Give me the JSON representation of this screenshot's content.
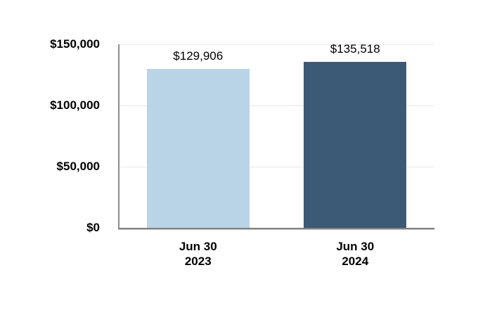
{
  "chart_data": {
    "type": "bar",
    "title": "",
    "xlabel": "",
    "ylabel": "",
    "categories": [
      [
        "Jun 30",
        "2023"
      ],
      [
        "Jun 30",
        "2024"
      ]
    ],
    "values": [
      129906,
      135518
    ],
    "value_labels": [
      "$129,906",
      "$135,518"
    ],
    "series_colors": [
      "#b9d4e7",
      "#3c5a76"
    ],
    "ylim": [
      0,
      150000
    ],
    "yticks": [
      {
        "value": 0,
        "label": "$0"
      },
      {
        "value": 50000,
        "label": "$50,000"
      },
      {
        "value": 100000,
        "label": "$100,000"
      },
      {
        "value": 150000,
        "label": "$150,000"
      }
    ],
    "grid": "horizontal",
    "legend": "none",
    "colors": {
      "background": "#ffffff",
      "gridline": "#e8e8e8",
      "y_axis_line": "#8c8c8c",
      "x_axis_line": "#7f7f7f",
      "text": "#000000"
    }
  }
}
